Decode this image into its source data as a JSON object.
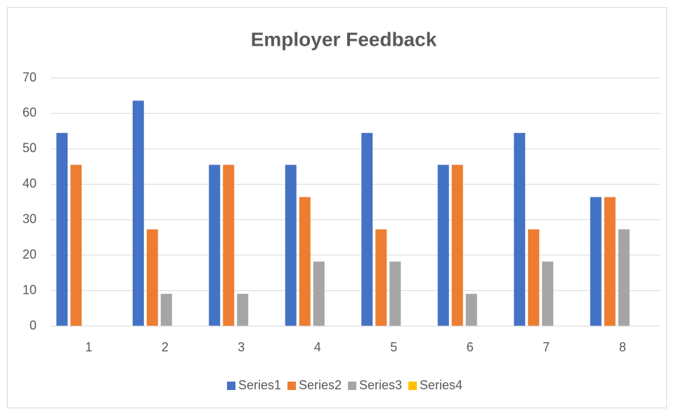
{
  "chart_data": {
    "type": "bar",
    "title": "Employer Feedback",
    "categories": [
      "1",
      "2",
      "3",
      "4",
      "5",
      "6",
      "7",
      "8"
    ],
    "series": [
      {
        "name": "Series1",
        "color": "#4472c4",
        "values": [
          54.5,
          63.6,
          45.5,
          45.5,
          54.5,
          45.5,
          54.5,
          36.4
        ]
      },
      {
        "name": "Series2",
        "color": "#ed7d31",
        "values": [
          45.5,
          27.3,
          45.5,
          36.4,
          27.3,
          45.5,
          27.3,
          36.4
        ]
      },
      {
        "name": "Series3",
        "color": "#a5a5a5",
        "values": [
          0,
          9.1,
          9.1,
          18.2,
          18.2,
          9.1,
          18.2,
          27.3
        ]
      },
      {
        "name": "Series4",
        "color": "#ffc000",
        "values": [
          0,
          0,
          0,
          0,
          0,
          0,
          0,
          0
        ]
      }
    ],
    "ylim": [
      0,
      70
    ],
    "yticks": [
      0,
      10,
      20,
      30,
      40,
      50,
      60,
      70
    ],
    "grid": true,
    "legend": "bottom"
  }
}
